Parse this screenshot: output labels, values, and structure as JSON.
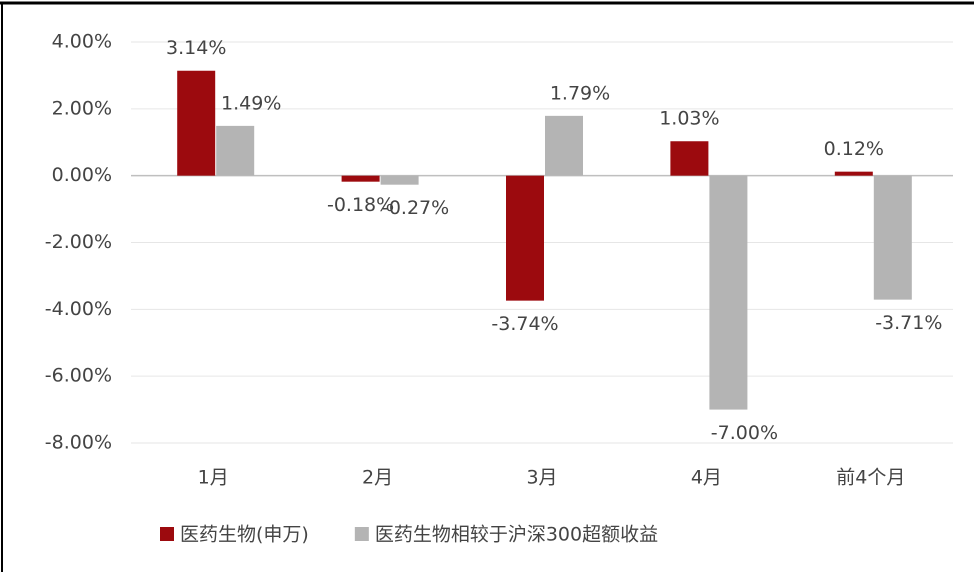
{
  "chart_data": {
    "type": "bar",
    "categories": [
      "1月",
      "2月",
      "3月",
      "4月",
      "前4个月"
    ],
    "series": [
      {
        "name": "医药生物(申万)",
        "color": "#9c0a0e",
        "values": [
          3.14,
          -0.18,
          -3.74,
          1.03,
          0.12
        ],
        "value_labels": [
          "3.14%",
          "-0.18%",
          "-3.74%",
          "1.03%",
          "0.12%"
        ]
      },
      {
        "name": "医药生物相较于沪深300超额收益",
        "color": "#b4b4b4",
        "values": [
          1.49,
          -0.27,
          1.79,
          -7.0,
          -3.71
        ],
        "value_labels": [
          "1.49%",
          "-0.27%",
          "1.79%",
          "-7.00%",
          "-3.71%"
        ]
      }
    ],
    "ylim": [
      -8,
      4
    ],
    "yticks": [
      {
        "value": -8,
        "label": "-8.00%"
      },
      {
        "value": -6,
        "label": "-6.00%"
      },
      {
        "value": -4,
        "label": "-4.00%"
      },
      {
        "value": -2,
        "label": "-2.00%"
      },
      {
        "value": 0,
        "label": "0.00%"
      },
      {
        "value": 2,
        "label": "2.00%"
      },
      {
        "value": 4,
        "label": "4.00%"
      }
    ],
    "grid": true,
    "legend": "bottom"
  }
}
